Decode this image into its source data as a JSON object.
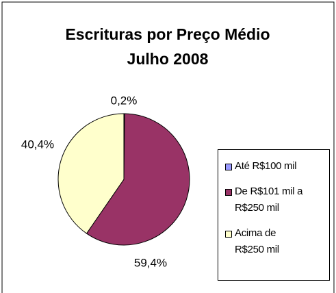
{
  "chart_data": {
    "type": "pie",
    "title": [
      "Escrituras por Preço Médio",
      "Julho 2008"
    ],
    "categories": [
      "Até R$100 mil",
      "De R$101 mil a R$250 mil",
      "Acima de R$250 mil"
    ],
    "values": [
      0.2,
      59.4,
      40.4
    ],
    "value_labels": [
      "0,2%",
      "59,4%",
      "40,4%"
    ],
    "colors": [
      "#9999ff",
      "#993366",
      "#ffffcc"
    ],
    "legend": "right"
  }
}
